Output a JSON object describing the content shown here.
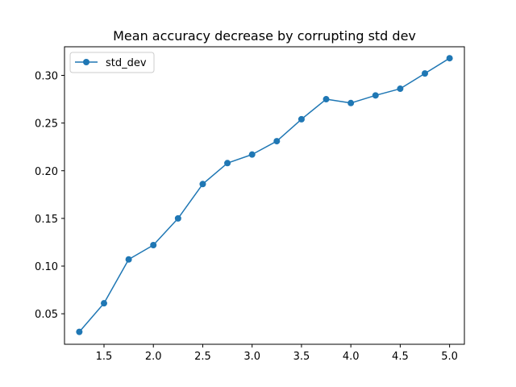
{
  "chart_data": {
    "type": "line",
    "title": "Mean accuracy decrease by corrupting std dev",
    "xlabel": "",
    "ylabel": "",
    "xlim": [
      1.1,
      5.15
    ],
    "ylim": [
      0.018,
      0.33
    ],
    "x_ticks": [
      "1.5",
      "2.0",
      "2.5",
      "3.0",
      "3.5",
      "4.0",
      "4.5",
      "5.0"
    ],
    "y_ticks": [
      "0.05",
      "0.10",
      "0.15",
      "0.20",
      "0.25",
      "0.30"
    ],
    "legend": {
      "position": "top-left"
    },
    "grid": false,
    "series": [
      {
        "name": "std_dev",
        "color": "#1f77b4",
        "marker": "circle",
        "x": [
          1.25,
          1.5,
          1.75,
          2.0,
          2.25,
          2.5,
          2.75,
          3.0,
          3.25,
          3.5,
          3.75,
          4.0,
          4.25,
          4.5,
          4.75,
          5.0
        ],
        "values": [
          0.031,
          0.061,
          0.107,
          0.122,
          0.15,
          0.186,
          0.208,
          0.217,
          0.231,
          0.254,
          0.275,
          0.271,
          0.279,
          0.286,
          0.302,
          0.318
        ]
      }
    ]
  }
}
